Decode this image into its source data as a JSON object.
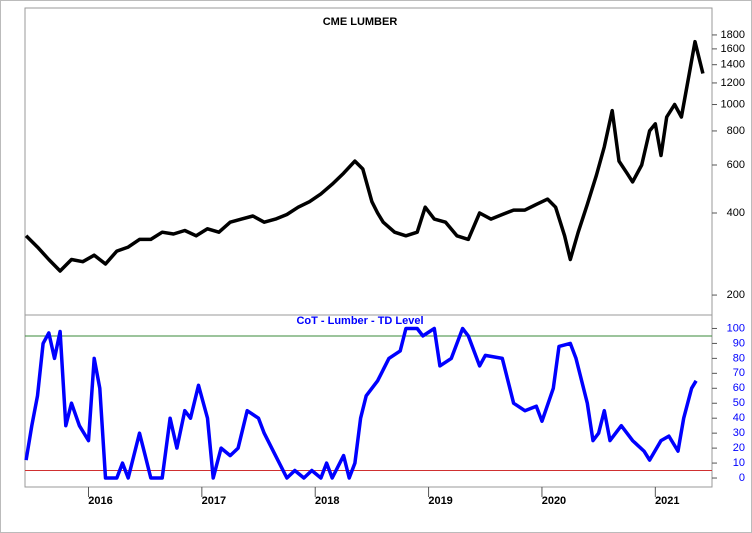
{
  "chart_data": [
    {
      "type": "line",
      "title": "CME LUMBER",
      "log_scale": true,
      "color": "#000000",
      "x": [
        2015.45,
        2015.55,
        2015.65,
        2015.75,
        2015.85,
        2015.95,
        2016.05,
        2016.15,
        2016.25,
        2016.35,
        2016.45,
        2016.55,
        2016.65,
        2016.75,
        2016.85,
        2016.95,
        2017.05,
        2017.15,
        2017.25,
        2017.35,
        2017.45,
        2017.55,
        2017.65,
        2017.75,
        2017.85,
        2017.95,
        2018.05,
        2018.15,
        2018.25,
        2018.35,
        2018.42,
        2018.5,
        2018.55,
        2018.6,
        2018.7,
        2018.8,
        2018.9,
        2018.97,
        2019.05,
        2019.15,
        2019.25,
        2019.35,
        2019.45,
        2019.55,
        2019.65,
        2019.75,
        2019.85,
        2019.95,
        2020.05,
        2020.12,
        2020.2,
        2020.25,
        2020.32,
        2020.4,
        2020.48,
        2020.55,
        2020.62,
        2020.68,
        2020.75,
        2020.8,
        2020.88,
        2020.95,
        2021.0,
        2021.05,
        2021.1,
        2021.17,
        2021.23,
        2021.3,
        2021.35,
        2021.42
      ],
      "values": [
        330,
        300,
        270,
        245,
        270,
        265,
        280,
        260,
        290,
        300,
        320,
        320,
        340,
        335,
        345,
        330,
        350,
        340,
        370,
        380,
        390,
        370,
        380,
        395,
        420,
        440,
        470,
        510,
        560,
        620,
        580,
        440,
        400,
        370,
        340,
        330,
        340,
        420,
        380,
        370,
        330,
        320,
        400,
        380,
        395,
        410,
        410,
        430,
        450,
        420,
        330,
        270,
        340,
        430,
        550,
        700,
        950,
        620,
        560,
        520,
        600,
        800,
        850,
        650,
        900,
        1000,
        900,
        1300,
        1700,
        1300
      ],
      "xlim": [
        2015.44,
        2021.5
      ],
      "ylim": [
        169,
        2260
      ],
      "yticks": [
        200,
        400,
        600,
        800,
        1000,
        1200,
        1400,
        1600,
        1800
      ]
    },
    {
      "type": "line",
      "title": "CoT - Lumber - TD Level",
      "color": "#0000ff",
      "x": [
        2015.45,
        2015.5,
        2015.55,
        2015.6,
        2015.65,
        2015.7,
        2015.75,
        2015.8,
        2015.85,
        2015.92,
        2016.0,
        2016.05,
        2016.1,
        2016.15,
        2016.25,
        2016.3,
        2016.35,
        2016.45,
        2016.5,
        2016.55,
        2016.65,
        2016.72,
        2016.78,
        2016.85,
        2016.9,
        2016.97,
        2017.05,
        2017.1,
        2017.17,
        2017.25,
        2017.32,
        2017.4,
        2017.5,
        2017.55,
        2017.65,
        2017.75,
        2017.82,
        2017.9,
        2017.97,
        2018.05,
        2018.1,
        2018.15,
        2018.25,
        2018.3,
        2018.35,
        2018.4,
        2018.45,
        2018.55,
        2018.65,
        2018.75,
        2018.8,
        2018.9,
        2018.95,
        2019.05,
        2019.1,
        2019.2,
        2019.3,
        2019.35,
        2019.45,
        2019.5,
        2019.65,
        2019.75,
        2019.85,
        2019.95,
        2020.0,
        2020.1,
        2020.15,
        2020.25,
        2020.3,
        2020.4,
        2020.45,
        2020.5,
        2020.55,
        2020.6,
        2020.7,
        2020.8,
        2020.9,
        2020.95,
        2021.05,
        2021.12,
        2021.2,
        2021.25,
        2021.32,
        2021.36
      ],
      "values": [
        12,
        35,
        55,
        90,
        97,
        80,
        98,
        35,
        50,
        35,
        25,
        80,
        60,
        0,
        0,
        10,
        0,
        30,
        15,
        0,
        0,
        40,
        20,
        45,
        40,
        62,
        40,
        0,
        20,
        15,
        20,
        45,
        40,
        30,
        15,
        0,
        5,
        0,
        5,
        0,
        10,
        0,
        15,
        0,
        10,
        40,
        55,
        65,
        80,
        85,
        100,
        100,
        95,
        100,
        75,
        80,
        100,
        95,
        75,
        82,
        80,
        50,
        45,
        48,
        38,
        60,
        88,
        90,
        80,
        50,
        25,
        30,
        45,
        25,
        35,
        25,
        18,
        12,
        25,
        28,
        18,
        40,
        60,
        65
      ],
      "xlim": [
        2015.44,
        2021.5
      ],
      "ylim": [
        -6,
        109
      ],
      "yticks": [
        0,
        10,
        20,
        30,
        40,
        50,
        60,
        70,
        80,
        90,
        100
      ],
      "hlines": [
        {
          "value": 95,
          "color": "#3a8a3a"
        },
        {
          "value": 5,
          "color": "#d03030"
        }
      ],
      "xticks": [
        2016,
        2017,
        2018,
        2019,
        2020,
        2021
      ]
    }
  ]
}
